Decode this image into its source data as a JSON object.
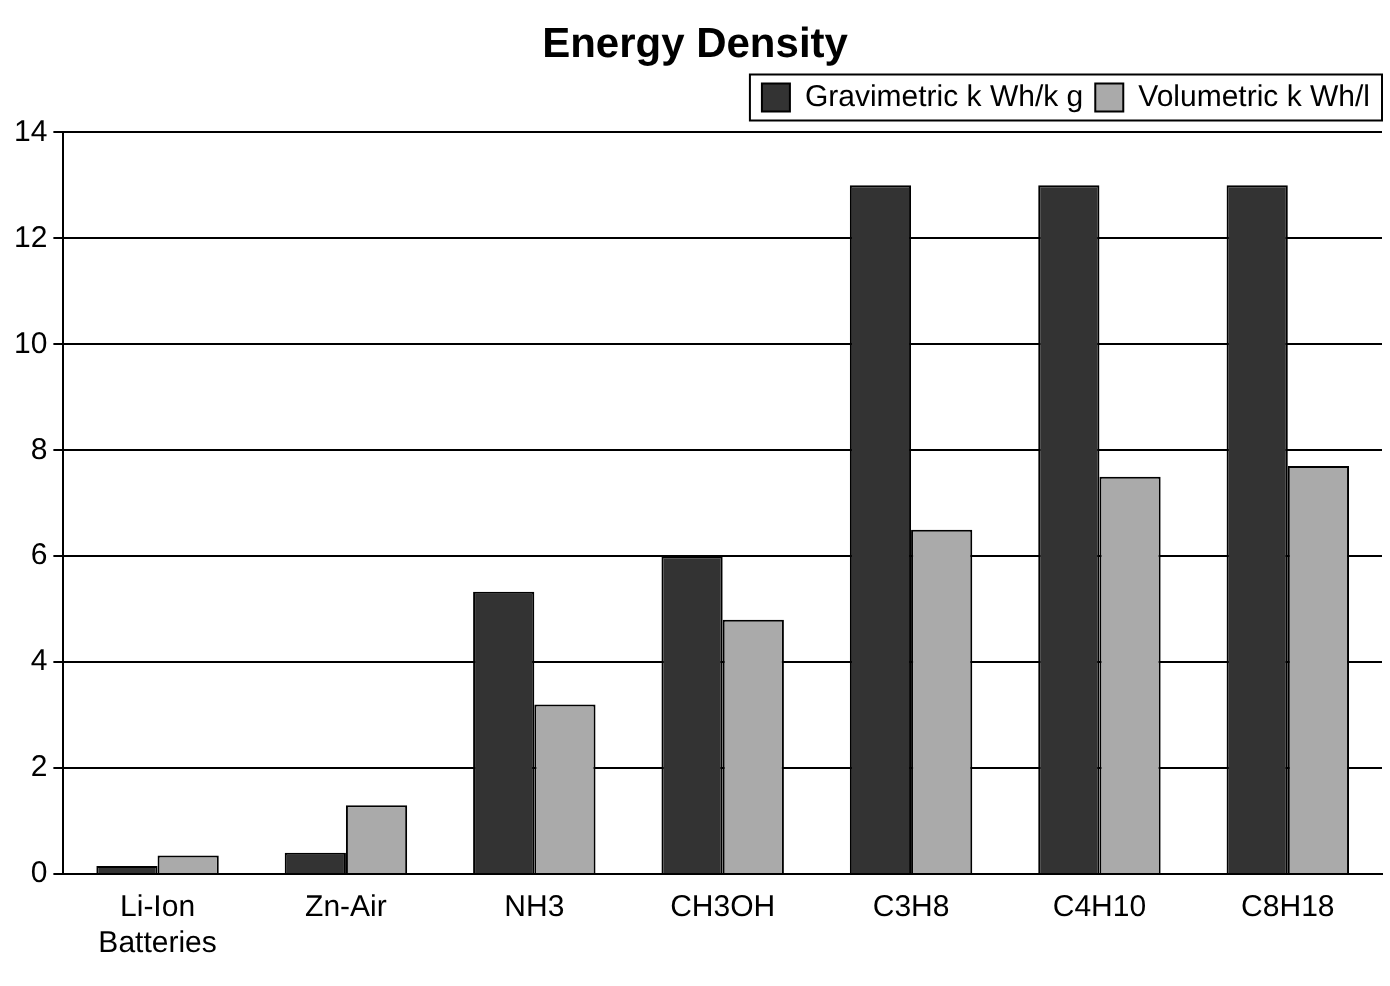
{
  "chart_data": {
    "type": "bar",
    "title": "Energy Density",
    "categories": [
      "Li-Ion Batteries",
      "Zn-Air",
      "NH3",
      "CH3OH",
      "C3H8",
      "C4H10",
      "C8H18"
    ],
    "series": [
      {
        "name": "Gravimetric k Wh/k g",
        "color": "#333333",
        "values": [
          0.15,
          0.4,
          5.33,
          6.0,
          13.0,
          13.0,
          13.0
        ]
      },
      {
        "name": "Volumetric k Wh/l",
        "color": "#aaaaaa",
        "values": [
          0.35,
          1.3,
          3.2,
          4.8,
          6.5,
          7.5,
          7.7
        ]
      }
    ],
    "ylim": [
      0,
      14
    ],
    "yticks": [
      0,
      2,
      4,
      6,
      8,
      10,
      12,
      14
    ],
    "grid": "y",
    "legend": "top right"
  }
}
